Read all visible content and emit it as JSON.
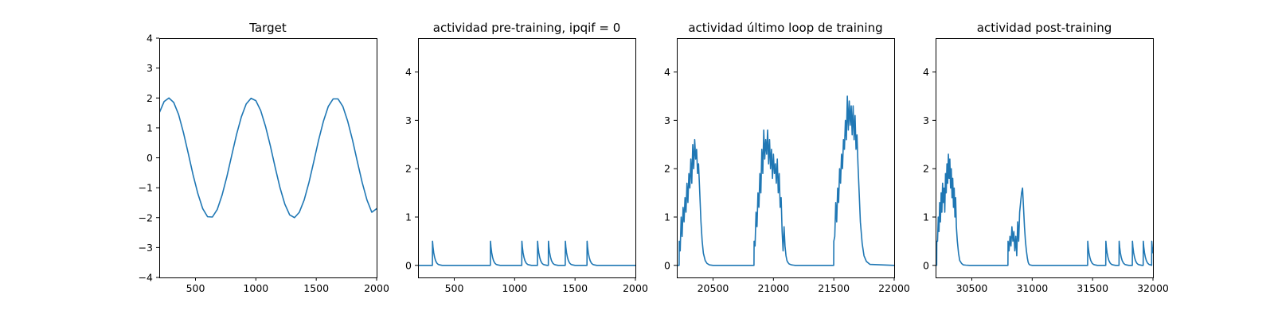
{
  "colors": {
    "series": "#1f77b4",
    "axes": "#000000",
    "background": "#ffffff"
  },
  "chart_data": [
    {
      "type": "line",
      "title": "Target",
      "xlim": [
        200,
        2000
      ],
      "ylim": [
        -4,
        4
      ],
      "xticks": [
        500,
        1000,
        1500,
        2000
      ],
      "yticks": [
        -4,
        -3,
        -2,
        -1,
        0,
        1,
        2,
        3,
        4
      ],
      "grid": false,
      "series": [
        {
          "x": [
            200,
            240,
            280,
            320,
            360,
            400,
            440,
            480,
            520,
            560,
            600,
            640,
            680,
            720,
            760,
            800,
            840,
            880,
            920,
            960,
            1000,
            1040,
            1080,
            1120,
            1160,
            1200,
            1240,
            1280,
            1320,
            1360,
            1400,
            1440,
            1480,
            1520,
            1560,
            1600,
            1640,
            1680,
            1720,
            1760,
            1800,
            1840,
            1880,
            1920,
            1960,
            2000
          ],
          "y": [
            1.5,
            1.88,
            2.0,
            1.85,
            1.45,
            0.85,
            0.15,
            -0.57,
            -1.2,
            -1.7,
            -1.97,
            -1.98,
            -1.73,
            -1.25,
            -0.63,
            0.08,
            0.78,
            1.37,
            1.8,
            1.99,
            1.91,
            1.58,
            1.05,
            0.4,
            -0.32,
            -1.0,
            -1.55,
            -1.91,
            -2.0,
            -1.82,
            -1.41,
            -0.82,
            -0.12,
            0.6,
            1.23,
            1.72,
            1.97,
            1.97,
            1.72,
            1.23,
            0.6,
            -0.12,
            -0.82,
            -1.41,
            -1.82,
            -1.7
          ]
        }
      ]
    },
    {
      "type": "line",
      "title": "actividad pre-training, ipqif = 0",
      "xlim": [
        200,
        2000
      ],
      "ylim": [
        -0.25,
        4.7
      ],
      "xticks": [
        500,
        1000,
        1500,
        2000
      ],
      "yticks": [
        0,
        1,
        2,
        3,
        4
      ],
      "grid": false,
      "series": [
        {
          "x": [
            200,
            319,
            320,
            324,
            330,
            337,
            345,
            355,
            367,
            380,
            400,
            799,
            800,
            804,
            810,
            817,
            825,
            835,
            847,
            860,
            880,
            1059,
            1060,
            1064,
            1070,
            1077,
            1085,
            1095,
            1107,
            1120,
            1140,
            1189,
            1190,
            1194,
            1200,
            1207,
            1215,
            1225,
            1237,
            1250,
            1270,
            1279,
            1280,
            1284,
            1290,
            1297,
            1305,
            1315,
            1327,
            1340,
            1360,
            1419,
            1420,
            1424,
            1430,
            1437,
            1445,
            1455,
            1467,
            1480,
            1500,
            1599,
            1600,
            1604,
            1610,
            1617,
            1625,
            1635,
            1647,
            1660,
            1680,
            2000
          ],
          "y": [
            0,
            0,
            0.5,
            0.38,
            0.26,
            0.17,
            0.1,
            0.05,
            0.02,
            0.01,
            0,
            0,
            0.5,
            0.38,
            0.26,
            0.17,
            0.1,
            0.05,
            0.02,
            0.01,
            0,
            0,
            0.5,
            0.38,
            0.26,
            0.17,
            0.1,
            0.05,
            0.02,
            0.01,
            0,
            0,
            0.5,
            0.38,
            0.26,
            0.17,
            0.1,
            0.05,
            0.02,
            0.01,
            0,
            0,
            0.5,
            0.38,
            0.26,
            0.17,
            0.1,
            0.05,
            0.02,
            0.01,
            0,
            0,
            0.5,
            0.38,
            0.26,
            0.17,
            0.1,
            0.05,
            0.02,
            0.01,
            0,
            0,
            0.5,
            0.38,
            0.26,
            0.17,
            0.1,
            0.05,
            0.02,
            0.01,
            0,
            0
          ]
        }
      ]
    },
    {
      "type": "line",
      "title": "actividad último loop de training",
      "xlim": [
        20200,
        22000
      ],
      "ylim": [
        -0.25,
        4.7
      ],
      "xticks": [
        20500,
        21000,
        21500,
        22000
      ],
      "yticks": [
        0,
        1,
        2,
        3,
        4
      ],
      "grid": false,
      "series": [
        {
          "x": [
            20200,
            20219,
            20220,
            20228,
            20236,
            20244,
            20252,
            20260,
            20268,
            20276,
            20284,
            20292,
            20300,
            20308,
            20316,
            20324,
            20332,
            20340,
            20348,
            20356,
            20364,
            20372,
            20380,
            20390,
            20400,
            20410,
            20420,
            20435,
            20450,
            20470,
            20500,
            20839,
            20840,
            20848,
            20856,
            20864,
            20872,
            20880,
            20888,
            20896,
            20904,
            20912,
            20920,
            20928,
            20936,
            20944,
            20952,
            20960,
            20968,
            20976,
            20984,
            20992,
            21000,
            21008,
            21016,
            21024,
            21032,
            21040,
            21048,
            21056,
            21064,
            21072,
            21080,
            21088,
            21096,
            21104,
            21112,
            21120,
            21130,
            21140,
            21150,
            21165,
            21180,
            21200,
            21240,
            21499,
            21500,
            21508,
            21516,
            21524,
            21532,
            21540,
            21548,
            21556,
            21564,
            21572,
            21580,
            21588,
            21596,
            21604,
            21612,
            21620,
            21628,
            21636,
            21644,
            21652,
            21660,
            21668,
            21676,
            21684,
            21692,
            21700,
            21710,
            21720,
            21735,
            21750,
            21770,
            21800,
            22000
          ],
          "y": [
            0,
            0,
            0.5,
            0.3,
            1.0,
            0.6,
            1.2,
            0.9,
            1.4,
            1.1,
            1.7,
            1.3,
            1.9,
            1.6,
            2.2,
            1.7,
            2.5,
            2.0,
            2.6,
            2.2,
            2.4,
            1.9,
            2.1,
            1.5,
            0.9,
            0.5,
            0.25,
            0.1,
            0.04,
            0.01,
            0,
            0,
            0.5,
            0.4,
            1.1,
            0.8,
            1.5,
            1.2,
            1.9,
            1.5,
            2.4,
            1.9,
            2.8,
            2.2,
            2.6,
            2.3,
            2.8,
            2.1,
            2.6,
            2.0,
            2.4,
            1.8,
            2.3,
            1.9,
            2.1,
            1.7,
            2.2,
            1.5,
            1.9,
            1.2,
            1.4,
            0.7,
            0.3,
            0.8,
            0.4,
            0.2,
            0.1,
            0.06,
            0.03,
            0.02,
            0.01,
            0.005,
            0,
            0,
            0,
            0,
            0.5,
            0.6,
            1.3,
            0.9,
            1.6,
            1.3,
            2.0,
            1.7,
            2.3,
            2.0,
            2.6,
            2.4,
            3.0,
            2.6,
            3.5,
            2.8,
            3.4,
            2.9,
            3.3,
            2.7,
            3.3,
            2.6,
            3.1,
            2.4,
            2.7,
            2.1,
            1.5,
            0.9,
            0.45,
            0.2,
            0.08,
            0.02,
            0
          ]
        }
      ]
    },
    {
      "type": "line",
      "title": "actividad post-training",
      "xlim": [
        30200,
        32000
      ],
      "ylim": [
        -0.25,
        4.7
      ],
      "xticks": [
        30500,
        31000,
        31500,
        32000
      ],
      "yticks": [
        0,
        1,
        2,
        3,
        4
      ],
      "grid": false,
      "series": [
        {
          "x": [
            30200,
            30209,
            30210,
            30216,
            30222,
            30228,
            30234,
            30240,
            30246,
            30252,
            30258,
            30264,
            30270,
            30276,
            30282,
            30288,
            30294,
            30300,
            30306,
            30312,
            30318,
            30324,
            30330,
            30336,
            30342,
            30348,
            30354,
            30360,
            30366,
            30372,
            30380,
            30390,
            30400,
            30415,
            30430,
            30450,
            30480,
            30799,
            30800,
            30808,
            30816,
            30824,
            30832,
            30840,
            30848,
            30856,
            30864,
            30872,
            30880,
            30888,
            30896,
            30904,
            30912,
            30920,
            30928,
            30936,
            30944,
            30952,
            30960,
            30966,
            30972,
            30980,
            30990,
            31000,
            31015,
            31030,
            31050,
            31080,
            31459,
            31460,
            31464,
            31470,
            31477,
            31485,
            31495,
            31507,
            31520,
            31540,
            31609,
            31610,
            31614,
            31620,
            31627,
            31635,
            31645,
            31657,
            31670,
            31690,
            31719,
            31720,
            31724,
            31730,
            31737,
            31745,
            31755,
            31767,
            31780,
            31800,
            31829,
            31830,
            31834,
            31840,
            31847,
            31855,
            31865,
            31877,
            31890,
            31910,
            31919,
            31920,
            31924,
            31930,
            31937,
            31945,
            31955,
            31967,
            31980,
            31989,
            31990,
            31994,
            32000
          ],
          "y": [
            0.5,
            0,
            0.5,
            0.5,
            1.0,
            0.7,
            1.3,
            0.9,
            1.5,
            1.1,
            1.7,
            1.3,
            1.6,
            1.1,
            1.9,
            1.5,
            2.1,
            1.7,
            2.3,
            1.8,
            2.2,
            1.6,
            2.0,
            1.4,
            1.8,
            1.2,
            1.6,
            1.0,
            1.4,
            0.8,
            0.5,
            0.25,
            0.1,
            0.04,
            0.01,
            0.005,
            0,
            0,
            0.5,
            0.3,
            0.6,
            0.4,
            0.8,
            0.5,
            0.7,
            0.3,
            0.6,
            0.2,
            0.9,
            0.5,
            1.1,
            1.3,
            1.5,
            1.6,
            1.2,
            0.8,
            0.5,
            0.3,
            0.15,
            0.07,
            0.03,
            0.01,
            0.005,
            0,
            0,
            0,
            0,
            0,
            0,
            0.5,
            0.38,
            0.26,
            0.17,
            0.1,
            0.05,
            0.02,
            0.01,
            0,
            0,
            0.5,
            0.38,
            0.26,
            0.17,
            0.1,
            0.05,
            0.02,
            0.01,
            0,
            0,
            0.5,
            0.38,
            0.26,
            0.17,
            0.1,
            0.05,
            0.02,
            0.01,
            0,
            0,
            0.5,
            0.38,
            0.26,
            0.17,
            0.1,
            0.05,
            0.02,
            0.01,
            0,
            0,
            0.5,
            0.38,
            0.26,
            0.17,
            0.1,
            0.05,
            0.02,
            0.01,
            0,
            0.5,
            0.38,
            0.26
          ]
        }
      ]
    }
  ]
}
